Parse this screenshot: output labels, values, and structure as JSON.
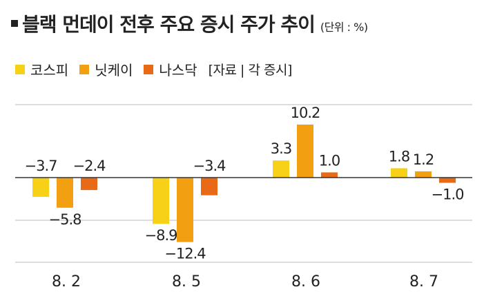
{
  "header": {
    "title": "블랙 먼데이 전후 주요 증시 주가 추이",
    "unit": "(단위 : %)"
  },
  "legend": {
    "source": "[자료 | 각 증시]"
  },
  "colors": {
    "kospi": "#F7D117",
    "nikkei": "#F2A012",
    "nasdaq": "#E86A17",
    "grid": "#bbbbbb",
    "zero": "#333333"
  },
  "chart_data": {
    "type": "bar",
    "categories": [
      "8. 2",
      "8. 5",
      "8. 6",
      "8. 7"
    ],
    "series": [
      {
        "name": "코스피",
        "values": [
          -3.7,
          -8.9,
          3.3,
          1.8
        ]
      },
      {
        "name": "닛케이",
        "values": [
          -5.8,
          -12.4,
          10.2,
          1.2
        ]
      },
      {
        "name": "나스닥",
        "values": [
          -2.4,
          -3.4,
          1.0,
          -1.0
        ]
      }
    ],
    "data_labels": [
      [
        "−3.7",
        "−8.9",
        "3.3",
        "1.8"
      ],
      [
        "−5.8",
        "−12.4",
        "10.2",
        "1.2"
      ],
      [
        "−2.4",
        "−3.4",
        "1.0",
        "−1.0"
      ]
    ],
    "title": "블랙 먼데이 전후 주요 증시 주가 추이",
    "xlabel": "",
    "ylabel": "",
    "ylim": [
      -14.5,
      12.5
    ],
    "grid": true,
    "legend_position": "top-left"
  }
}
